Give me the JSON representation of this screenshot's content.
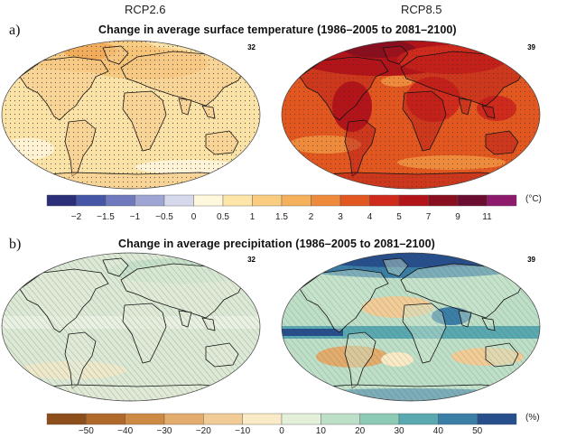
{
  "scenarios": {
    "left": "RCP2.6",
    "right": "RCP8.5"
  },
  "panel_a": {
    "letter": "a)",
    "title": "Change in average surface temperature (1986–2005 to 2081–2100)",
    "left_count": "32",
    "right_count": "39",
    "colorbar": {
      "ticks": [
        "−2",
        "−1.5",
        "−1",
        "−0.5",
        "0",
        "0.5",
        "1",
        "1.5",
        "2",
        "3",
        "4",
        "5",
        "7",
        "9",
        "11"
      ],
      "unit": "(°C)",
      "colors": [
        "#2b2f78",
        "#4656a6",
        "#6f79bd",
        "#9fa5d3",
        "#d6d8ec",
        "#fff8dc",
        "#fde6a8",
        "#f9cc7f",
        "#f5b05c",
        "#ee8a3b",
        "#e2571f",
        "#cf2a1b",
        "#b3141a",
        "#8a0f1e",
        "#6a0d30",
        "#8e1a6e"
      ]
    }
  },
  "panel_b": {
    "letter": "b)",
    "title": "Change in average precipitation (1986–2005 to 2081–2100)",
    "left_count": "32",
    "right_count": "39",
    "colorbar": {
      "ticks": [
        "−50",
        "−40",
        "−30",
        "−20",
        "−10",
        "0",
        "10",
        "20",
        "30",
        "40",
        "50"
      ],
      "unit": "(%)",
      "colors": [
        "#8c4f1c",
        "#b0692a",
        "#cc8a45",
        "#e2ac6d",
        "#f1cc97",
        "#faebc6",
        "#e4efd9",
        "#bedfc7",
        "#8ccab6",
        "#5aa9b1",
        "#3b7ea6",
        "#274f8c"
      ]
    }
  }
}
